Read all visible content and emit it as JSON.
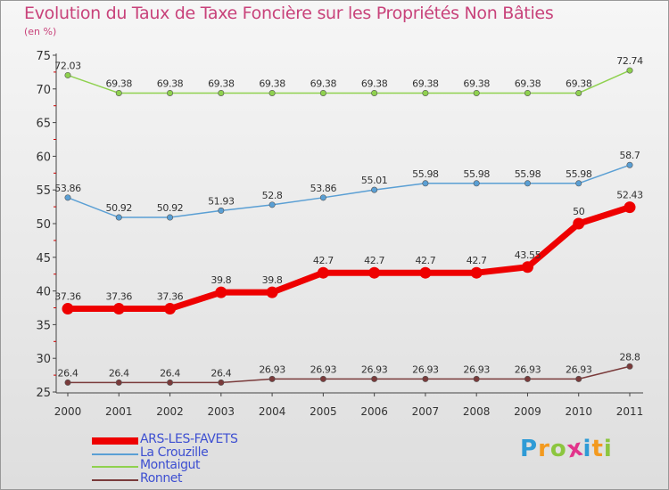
{
  "header": {
    "title": "Evolution du Taux de Taxe Foncière sur les Propriétés Non Bâties",
    "subtitle": "(en %)"
  },
  "chart_data": {
    "type": "line",
    "title": "Evolution du Taux de Taxe Foncière sur les Propriétés Non Bâties",
    "ylabel": "(en %)",
    "xlabel": "",
    "ylim": [
      25,
      75
    ],
    "yticks": [
      25,
      30,
      35,
      40,
      45,
      50,
      55,
      60,
      65,
      70,
      75
    ],
    "grid": false,
    "legend": "bottom-left",
    "x": [
      "2000",
      "2001",
      "2002",
      "2003",
      "2004",
      "2005",
      "2006",
      "2007",
      "2008",
      "2009",
      "2010",
      "2011"
    ],
    "series": [
      {
        "name": "Montaigut",
        "color": "#8fd14f",
        "values": [
          72.03,
          69.38,
          69.38,
          69.38,
          69.38,
          69.38,
          69.38,
          69.38,
          69.38,
          69.38,
          69.38,
          72.74
        ],
        "labels": [
          "72.03",
          "69.38",
          "69.38",
          "69.38",
          "69.38",
          "69.38",
          "69.38",
          "69.38",
          "69.38",
          "69.38",
          "69.38",
          "72.74"
        ]
      },
      {
        "name": "La Crouzille",
        "color": "#5a9fd4",
        "values": [
          53.86,
          50.92,
          50.92,
          51.93,
          52.8,
          53.86,
          55.01,
          55.98,
          55.98,
          55.98,
          55.98,
          58.7
        ],
        "labels": [
          "53.86",
          "50.92",
          "50.92",
          "51.93",
          "52.8",
          "53.86",
          "55.01",
          "55.98",
          "55.98",
          "55.98",
          "55.98",
          "58.7"
        ]
      },
      {
        "name": "ARS-LES-FAVETS",
        "color": "#ee0000",
        "values": [
          37.36,
          37.36,
          37.36,
          39.8,
          39.8,
          42.7,
          42.7,
          42.7,
          42.7,
          43.55,
          50,
          52.43
        ],
        "labels": [
          "37.36",
          "37.36",
          "37.36",
          "39.8",
          "39.8",
          "42.7",
          "42.7",
          "42.7",
          "42.7",
          "43.55",
          "50",
          "52.43"
        ]
      },
      {
        "name": "Ronnet",
        "color": "#7a3b3b",
        "values": [
          26.4,
          26.4,
          26.4,
          26.4,
          26.93,
          26.93,
          26.93,
          26.93,
          26.93,
          26.93,
          26.93,
          28.8
        ],
        "labels": [
          "26.4",
          "26.4",
          "26.4",
          "26.4",
          "26.93",
          "26.93",
          "26.93",
          "26.93",
          "26.93",
          "26.93",
          "26.93",
          "28.8"
        ]
      }
    ]
  },
  "legend": {
    "items": [
      {
        "label": "ARS-LES-FAVETS",
        "color": "#ee0000",
        "text_color": "#3d4fd1"
      },
      {
        "label": "La Crouzille",
        "color": "#5a9fd4",
        "text_color": "#3d4fd1"
      },
      {
        "label": "Montaigut",
        "color": "#8fd14f",
        "text_color": "#3d4fd1"
      },
      {
        "label": "Ronnet",
        "color": "#7a3b3b",
        "text_color": "#3d4fd1"
      }
    ]
  },
  "brand": {
    "letters": [
      "P",
      "r",
      "o",
      "x",
      "i",
      "t",
      "i"
    ],
    "colors": [
      "#2e9bd6",
      "#f39a1f",
      "#8cc63f",
      "#e2348b",
      "#2e9bd6",
      "#f39a1f",
      "#8cc63f"
    ]
  }
}
